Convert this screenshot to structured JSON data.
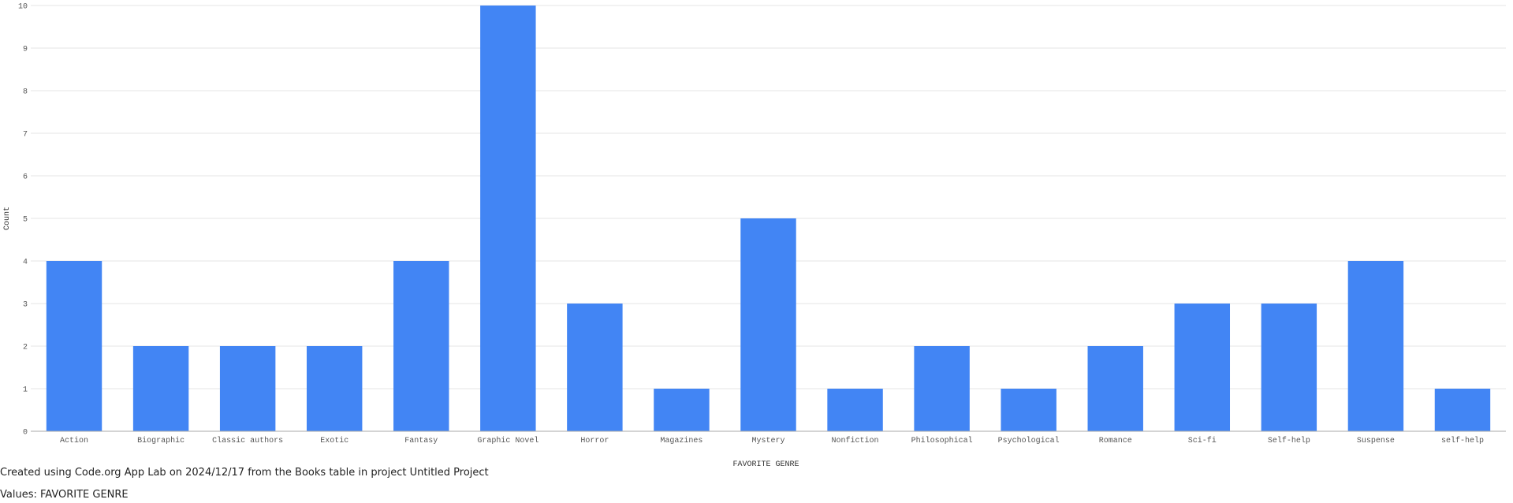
{
  "chart_data": {
    "type": "bar",
    "categories": [
      "Action",
      "Biographic",
      "Classic authors",
      "Exotic",
      "Fantasy",
      "Graphic Novel",
      "Horror",
      "Magazines",
      "Mystery",
      "Nonfiction",
      "Philosophical",
      "Psychological",
      "Romance",
      "Sci-fi",
      "Self-help",
      "Suspense",
      "self-help"
    ],
    "values": [
      4,
      2,
      2,
      2,
      4,
      10,
      3,
      1,
      5,
      1,
      2,
      1,
      2,
      3,
      3,
      4,
      1
    ],
    "xlabel": "FAVORITE GENRE",
    "ylabel": "Count",
    "ylim": [
      0,
      10
    ],
    "yticks": [
      0,
      1,
      2,
      3,
      4,
      5,
      6,
      7,
      8,
      9,
      10
    ],
    "grid": true,
    "legend": "none",
    "bar_color": "#4285f4"
  },
  "footer": {
    "created": "Created using Code.org App Lab on 2024/12/17 from the Books table in project Untitled Project",
    "values": "Values: FAVORITE GENRE"
  }
}
